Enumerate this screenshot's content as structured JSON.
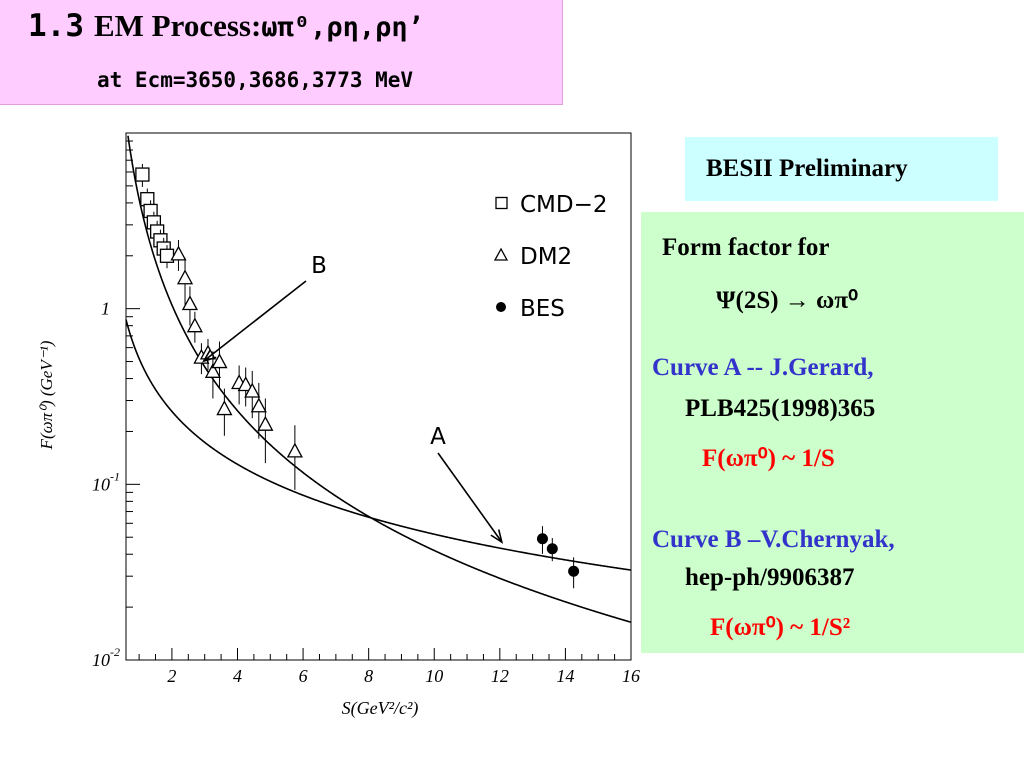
{
  "title": {
    "number": "1.3",
    "text": "EM Process:",
    "processes": "ωπ⁰,ρη,ρη’",
    "subtitle": "at Ecm=3650,3686,3773 MeV"
  },
  "preliminary_label": "BESII Preliminary",
  "info": {
    "form_factor_line1": "Form factor for",
    "form_factor_line2": "Ψ(2S) → ωπ⁰",
    "curve_a_label": "Curve A -- J.Gerard,",
    "curve_a_ref": "PLB425(1998)365",
    "curve_a_formula": "F(ωπ⁰) ~ 1/S",
    "curve_b_label": "Curve B –V.Chernyak,",
    "curve_b_ref": "hep-ph/9906387",
    "curve_b_formula": "F(ωπ⁰) ~ 1/S²"
  },
  "colors": {
    "title_bg": "#ffccff",
    "preliminary_bg": "#ccffff",
    "info_bg": "#ccffcc",
    "reference_blue": "#3333cc",
    "formula_red": "#ff0000"
  },
  "chart_data": {
    "type": "scatter",
    "xlabel": "S(GeV²/c²)",
    "ylabel": "F(ωπ⁰) (GeV⁻¹)",
    "xlim": [
      0.6,
      16
    ],
    "ylim": [
      0.01,
      10
    ],
    "yscale": "log",
    "x_ticks": [
      2,
      4,
      6,
      8,
      10,
      12,
      14,
      16
    ],
    "y_ticks": [
      {
        "value": 1,
        "base": "1",
        "exp": ""
      },
      {
        "value": 0.1,
        "base": "10",
        "exp": "-1"
      },
      {
        "value": 0.01,
        "base": "10",
        "exp": "-2"
      }
    ],
    "legend_position": "top-right",
    "series": [
      {
        "name": "CMD−2",
        "marker": "square",
        "points": [
          {
            "x": 1.1,
            "y": 5.8,
            "err": 0.15
          },
          {
            "x": 1.25,
            "y": 4.2,
            "err": 0.15
          },
          {
            "x": 1.35,
            "y": 3.6,
            "err": 0.15
          },
          {
            "x": 1.45,
            "y": 3.1,
            "err": 0.15
          },
          {
            "x": 1.55,
            "y": 2.75,
            "err": 0.15
          },
          {
            "x": 1.65,
            "y": 2.45,
            "err": 0.15
          },
          {
            "x": 1.75,
            "y": 2.2,
            "err": 0.15
          },
          {
            "x": 1.85,
            "y": 2.0,
            "err": 0.15
          }
        ]
      },
      {
        "name": "DM2",
        "marker": "triangle",
        "points": [
          {
            "x": 2.2,
            "y": 2.05,
            "err": 0.2
          },
          {
            "x": 2.4,
            "y": 1.5,
            "err": 0.3
          },
          {
            "x": 2.55,
            "y": 1.07,
            "err": 0.25
          },
          {
            "x": 2.7,
            "y": 0.8,
            "err": 0.2
          },
          {
            "x": 2.9,
            "y": 0.53,
            "err": 0.2
          },
          {
            "x": 3.1,
            "y": 0.56,
            "err": 0.2
          },
          {
            "x": 3.25,
            "y": 0.44,
            "err": 0.3
          },
          {
            "x": 3.45,
            "y": 0.5,
            "err": 0.3
          },
          {
            "x": 3.6,
            "y": 0.27,
            "err": 0.3
          },
          {
            "x": 4.05,
            "y": 0.38,
            "err": 0.25
          },
          {
            "x": 4.25,
            "y": 0.37,
            "err": 0.25
          },
          {
            "x": 4.45,
            "y": 0.34,
            "err": 0.3
          },
          {
            "x": 4.65,
            "y": 0.28,
            "err": 0.35
          },
          {
            "x": 4.85,
            "y": 0.22,
            "err": 0.4
          },
          {
            "x": 5.75,
            "y": 0.155,
            "err": 0.4
          }
        ]
      },
      {
        "name": "BES",
        "marker": "circle",
        "points": [
          {
            "x": 13.3,
            "y": 0.049,
            "err": 0.18
          },
          {
            "x": 13.6,
            "y": 0.043,
            "err": 0.15
          },
          {
            "x": 14.25,
            "y": 0.032,
            "err": 0.2
          }
        ]
      }
    ],
    "curves": [
      {
        "label": "A",
        "formula": "F ~ 1/S",
        "coef": 0.52
      },
      {
        "label": "B",
        "formula": "F ~ 1/S²",
        "coef": 4.2
      }
    ],
    "annotations": [
      {
        "label": "A",
        "arrow_to_x": 12.0
      },
      {
        "label": "B",
        "arrow_to_x": 2.85
      }
    ]
  }
}
